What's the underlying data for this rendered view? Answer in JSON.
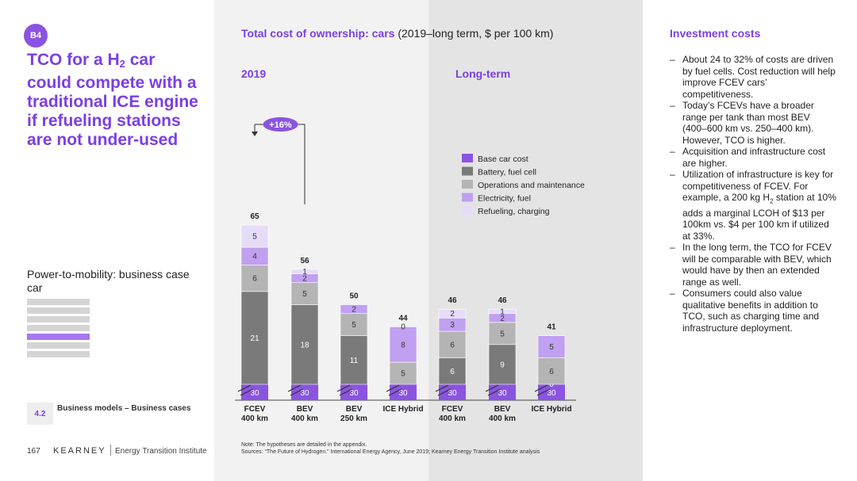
{
  "badge": "B4",
  "headline": {
    "line1_pre": "TCO for a H",
    "line1_sub": "2",
    "line1_post": " car",
    "rest": "could compete with a traditional ICE engine if refueling stations are not under-used"
  },
  "section_label": "Power-to-mobility: business case car",
  "nav_bars": [
    false,
    false,
    false,
    false,
    true,
    false,
    false
  ],
  "section": {
    "number": "4.2",
    "name": "Business models – Business cases"
  },
  "footer": {
    "page": "167",
    "brand": "KEARNEY",
    "institute": "Energy Transition Institute"
  },
  "chart_title": {
    "bold": "Total cost of ownership: cars",
    "rest": " (2019–long term, $ per 100 km)"
  },
  "periods": {
    "p2019": "2019",
    "long_term": "Long-term"
  },
  "notes": {
    "line1": "Note: The hypotheses are detailed in the appendix.",
    "line2": "Sources: “The Future of Hydrogen.” International Energy Agency, June 2019; Kearney Energy Transition Institute analysis"
  },
  "investment": {
    "title": "Investment costs",
    "bullets": [
      "About 24 to 32% of costs are driven by fuel cells. Cost reduction will help improve FCEV cars’ competitiveness.",
      "Today’s FCEVs have a broader range per tank than most BEV (400–600 km vs. 250–400 km). However, TCO is higher.",
      "Acquisition and infrastructure cost are higher.",
      "In the long term, the TCO for FCEV will be comparable with BEV, which would have by then an extended range as well.",
      "Consumers could also value qualitative benefits in addition to TCO, such as charging time and infrastructure deployment."
    ],
    "bullet_h2": {
      "pre": "Utilization of infrastructure is key for competitiveness of FCEV. For example, a 200 kg H",
      "sub": "2",
      "post": " station at 10% adds a marginal LCOH of $13 per 100km vs. $4 per 100 km if utilized at 33%."
    }
  },
  "chart_data": {
    "type": "bar",
    "stacked": true,
    "categories": [
      "FCEV\n400 km",
      "BEV\n400 km",
      "BEV\n250 km",
      "ICE Hybrid",
      "FCEV\n400 km",
      "BEV\n400 km",
      "ICE Hybrid"
    ],
    "groups": [
      {
        "name": "2019",
        "categories": [
          0,
          1,
          2,
          3
        ]
      },
      {
        "name": "Long-term",
        "categories": [
          4,
          5,
          6
        ]
      }
    ],
    "series": [
      {
        "name": "Base car cost",
        "color": "#8a54e0",
        "values": [
          30,
          30,
          30,
          30,
          30,
          30,
          30
        ]
      },
      {
        "name": "Battery, fuel cell",
        "color": "#7a7a7a",
        "values": [
          21,
          18,
          11,
          null,
          6,
          9,
          0
        ]
      },
      {
        "name": "Operations and maintenance",
        "color": "#b4b4b4",
        "values": [
          6,
          5,
          5,
          5,
          6,
          5,
          6
        ]
      },
      {
        "name": "Electricity, fuel",
        "color": "#c0a0f0",
        "values": [
          4,
          2,
          2,
          8,
          3,
          2,
          5
        ]
      },
      {
        "name": "Refueling, charging",
        "color": "#e6dcf8",
        "values": [
          5,
          1,
          null,
          0,
          2,
          1,
          null
        ]
      }
    ],
    "totals": [
      65,
      56,
      50,
      44,
      46,
      46,
      41
    ],
    "axis_break": true,
    "annotation": {
      "text": "+16%",
      "from": 1,
      "to": 0
    }
  }
}
